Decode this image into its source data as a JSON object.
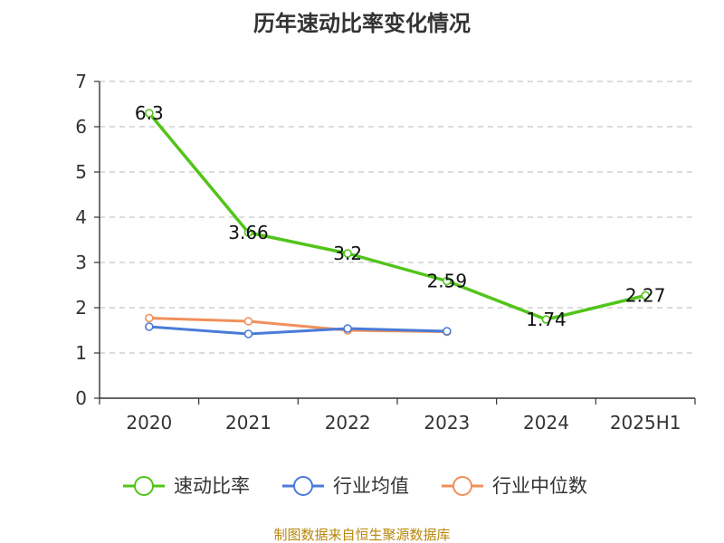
{
  "chart_data": {
    "type": "line",
    "title": "历年速动比率变化情况",
    "categories": [
      "2020",
      "2021",
      "2022",
      "2023",
      "2024",
      "2025H1"
    ],
    "ylim": [
      0,
      7
    ],
    "yticks": [
      0,
      1,
      2,
      3,
      4,
      5,
      6,
      7
    ],
    "grid": true,
    "legend_position": "bottom",
    "series": [
      {
        "name": "速动比率",
        "color": "#52c41a",
        "values": [
          6.3,
          3.66,
          3.2,
          2.59,
          1.74,
          2.27
        ],
        "labels": [
          "6.3",
          "3.66",
          "3.2",
          "2.59",
          "1.74",
          "2.27"
        ]
      },
      {
        "name": "行业均值",
        "color": "#4a7bd8",
        "values": [
          1.58,
          1.42,
          1.54,
          1.48,
          null,
          null
        ]
      },
      {
        "name": "行业中位数",
        "color": "#f0905a",
        "values": [
          1.77,
          1.7,
          1.5,
          1.47,
          null,
          null
        ]
      }
    ]
  },
  "source": "制图数据来自恒生聚源数据库"
}
